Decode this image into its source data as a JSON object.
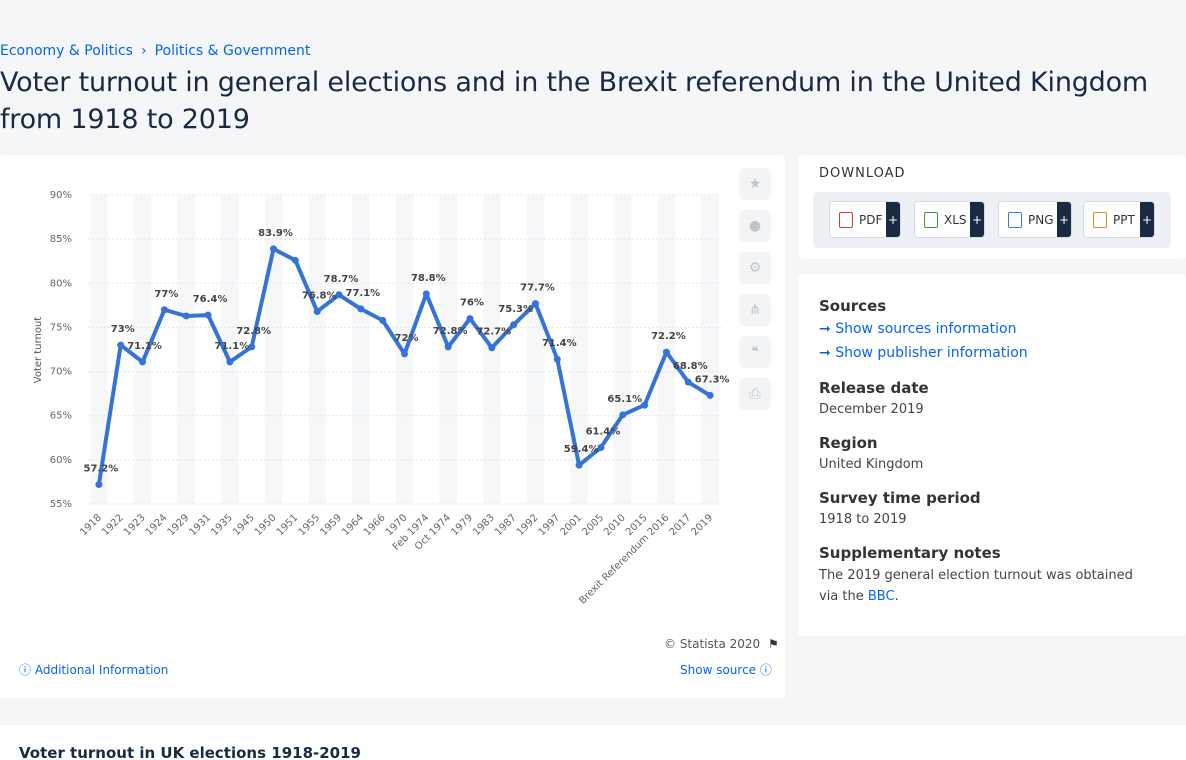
{
  "breadcrumb": {
    "item1": "Economy & Politics",
    "item2": "Politics & Government"
  },
  "title": "Voter turnout in general elections and in the Brexit referendum in the United Kingdom from 1918 to 2019",
  "chart_data": {
    "type": "line",
    "ylabel": "Voter turnout",
    "ylim": [
      55,
      90
    ],
    "yticks": [
      "55%",
      "60%",
      "65%",
      "70%",
      "75%",
      "80%",
      "85%",
      "90%"
    ],
    "grid": true,
    "color": "#3573d6",
    "categories": [
      "1918",
      "1922",
      "1923",
      "1924",
      "1929",
      "1931",
      "1935",
      "1945",
      "1950",
      "1951",
      "1955",
      "1959",
      "1964",
      "1966",
      "1970",
      "Feb 1974",
      "Oct 1974",
      "1979",
      "1983",
      "1987",
      "1992",
      "1997",
      "2001",
      "2005",
      "2010",
      "2015",
      "Brexit Referendum 2016",
      "2017",
      "2019"
    ],
    "values": [
      57.2,
      73,
      71.1,
      77,
      76.3,
      76.4,
      71.1,
      72.8,
      83.9,
      82.6,
      76.8,
      78.7,
      77.1,
      75.8,
      72,
      78.8,
      72.8,
      76,
      72.7,
      75.3,
      77.7,
      71.4,
      59.4,
      61.4,
      65.1,
      66.2,
      72.2,
      68.8,
      67.3
    ],
    "labels": [
      "57.2%",
      "73%",
      "71.1%",
      "77%",
      "",
      "76.4%",
      "71.1%",
      "72.8%",
      "83.9%",
      "",
      "76.8%",
      "78.7%",
      "77.1%",
      "",
      "72%",
      "78.8%",
      "72.8%",
      "76%",
      "72.7%",
      "75.3%",
      "77.7%",
      "71.4%",
      "59.4%",
      "61.4%",
      "65.1%",
      "",
      "72.2%",
      "68.8%",
      "67.3%"
    ]
  },
  "copyright": "© Statista 2020",
  "additional_info": "Additional Information",
  "show_source": "Show source",
  "download": {
    "title": "DOWNLOAD",
    "buttons": [
      "PDF",
      "XLS",
      "PNG",
      "PPT"
    ]
  },
  "info": {
    "sources_title": "Sources",
    "show_sources": "Show sources information",
    "show_publisher": "Show publisher information",
    "release_title": "Release date",
    "release_value": "December 2019",
    "region_title": "Region",
    "region_value": "United Kingdom",
    "survey_title": "Survey time period",
    "survey_value": "1918 to 2019",
    "notes_title": "Supplementary notes",
    "notes_text": "The 2019 general election turnout was obtained via the",
    "notes_link": "BBC",
    "notes_end": "."
  },
  "bottom_title": "Voter turnout in UK elections 1918-2019"
}
